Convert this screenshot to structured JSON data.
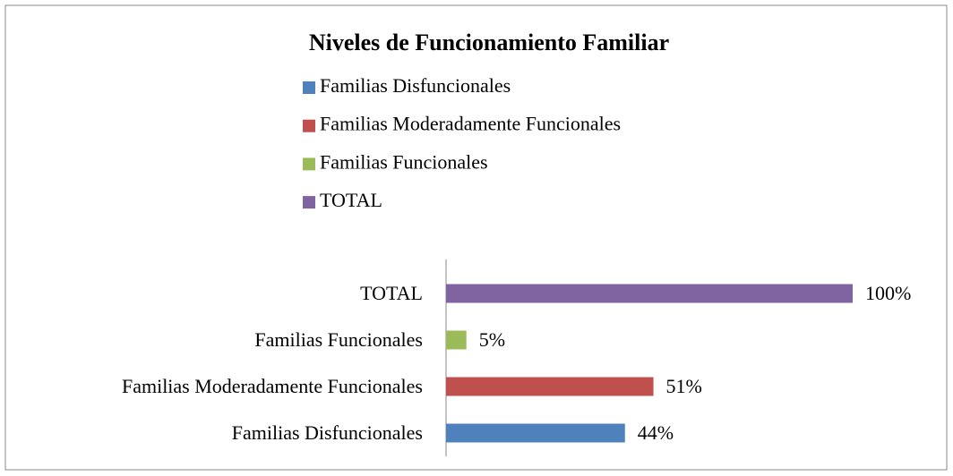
{
  "chart_data": {
    "type": "bar",
    "orientation": "horizontal",
    "title": "Niveles de Funcionamiento Familiar",
    "categories": [
      "Familias Disfuncionales",
      "Familias Moderadamente Funcionales",
      "Familias Funcionales",
      "TOTAL"
    ],
    "values": [
      44,
      51,
      5,
      100
    ],
    "value_labels": [
      "44%",
      "51%",
      "5%",
      "100%"
    ],
    "colors": [
      "#4f81bd",
      "#c0504d",
      "#9bbb59",
      "#8064a2"
    ],
    "xlim": [
      0,
      100
    ],
    "legend": "top"
  }
}
